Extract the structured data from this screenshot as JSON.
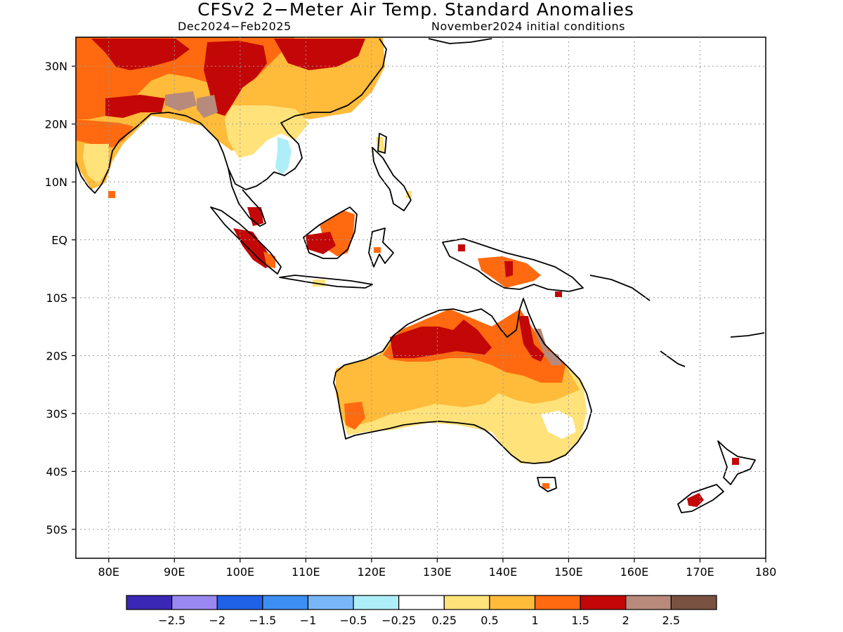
{
  "title": "CFSv2 2−Meter Air Temp. Standard Anomalies",
  "subtitle_left": "Dec2024−Feb2025",
  "subtitle_right": "November2024 initial conditions",
  "map": {
    "lon_range": [
      75,
      180
    ],
    "lat_range": [
      -55,
      35
    ],
    "x_ticks": [
      {
        "value": 80,
        "label": "80E"
      },
      {
        "value": 90,
        "label": "90E"
      },
      {
        "value": 100,
        "label": "100E"
      },
      {
        "value": 110,
        "label": "110E"
      },
      {
        "value": 120,
        "label": "120E"
      },
      {
        "value": 130,
        "label": "130E"
      },
      {
        "value": 140,
        "label": "140E"
      },
      {
        "value": 150,
        "label": "150E"
      },
      {
        "value": 160,
        "label": "160E"
      },
      {
        "value": 170,
        "label": "170E"
      },
      {
        "value": 180,
        "label": "180"
      }
    ],
    "y_ticks": [
      {
        "value": 30,
        "label": "30N"
      },
      {
        "value": 20,
        "label": "20N"
      },
      {
        "value": 10,
        "label": "10N"
      },
      {
        "value": 0,
        "label": "EQ"
      },
      {
        "value": -10,
        "label": "10S"
      },
      {
        "value": -20,
        "label": "20S"
      },
      {
        "value": -30,
        "label": "30S"
      },
      {
        "value": -40,
        "label": "40S"
      },
      {
        "value": -50,
        "label": "50S"
      }
    ],
    "grid": true,
    "coastline_color": "#000000"
  },
  "colorbar": {
    "colors": [
      "#3a27b4",
      "#9a88f2",
      "#1f62e8",
      "#3c8ef2",
      "#78b6f7",
      "#aeeef8",
      "#ffffff",
      "#ffe27a",
      "#ffbb3a",
      "#ff6a10",
      "#c30707",
      "#b88a7c",
      "#7a5242"
    ],
    "labels": [
      "−2.5",
      "−2",
      "−1.5",
      "−1",
      "−0.5",
      "−0.25",
      "0.25",
      "0.5",
      "1",
      "1.5",
      "2",
      "2.5"
    ]
  },
  "anomaly_colors": {
    "light": "#ffe27a",
    "moderate": "#ffbb3a",
    "strong": "#ff6a10",
    "very_strong": "#c30707",
    "extreme": "#b88a7c",
    "cool": "#aeeef8"
  }
}
